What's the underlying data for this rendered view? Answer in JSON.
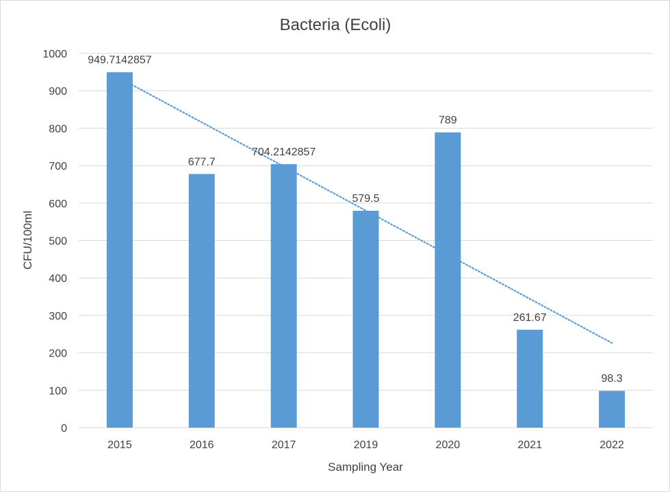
{
  "chart_data": {
    "type": "bar",
    "title": "Bacteria (Ecoli)",
    "xlabel": "Sampling Year",
    "ylabel": "CFU/100ml",
    "categories": [
      "2015",
      "2016",
      "2017",
      "2019",
      "2020",
      "2021",
      "2022"
    ],
    "values": [
      949.7142857,
      677.7,
      704.2142857,
      579.5,
      789,
      261.67,
      98.3
    ],
    "data_labels": [
      "949.7142857",
      "677.7",
      "704.2142857",
      "579.5",
      "789",
      "261.67",
      "98.3"
    ],
    "ylim": [
      0,
      1000
    ],
    "yticks": [
      0,
      100,
      200,
      300,
      400,
      500,
      600,
      700,
      800,
      900,
      1000
    ],
    "grid": true,
    "trendline": {
      "type": "linear",
      "style": "dotted"
    },
    "colors": {
      "bar": "#5b9bd5",
      "trendline": "#5b9bd5",
      "grid": "#d9d9d9",
      "text": "#404040"
    }
  }
}
